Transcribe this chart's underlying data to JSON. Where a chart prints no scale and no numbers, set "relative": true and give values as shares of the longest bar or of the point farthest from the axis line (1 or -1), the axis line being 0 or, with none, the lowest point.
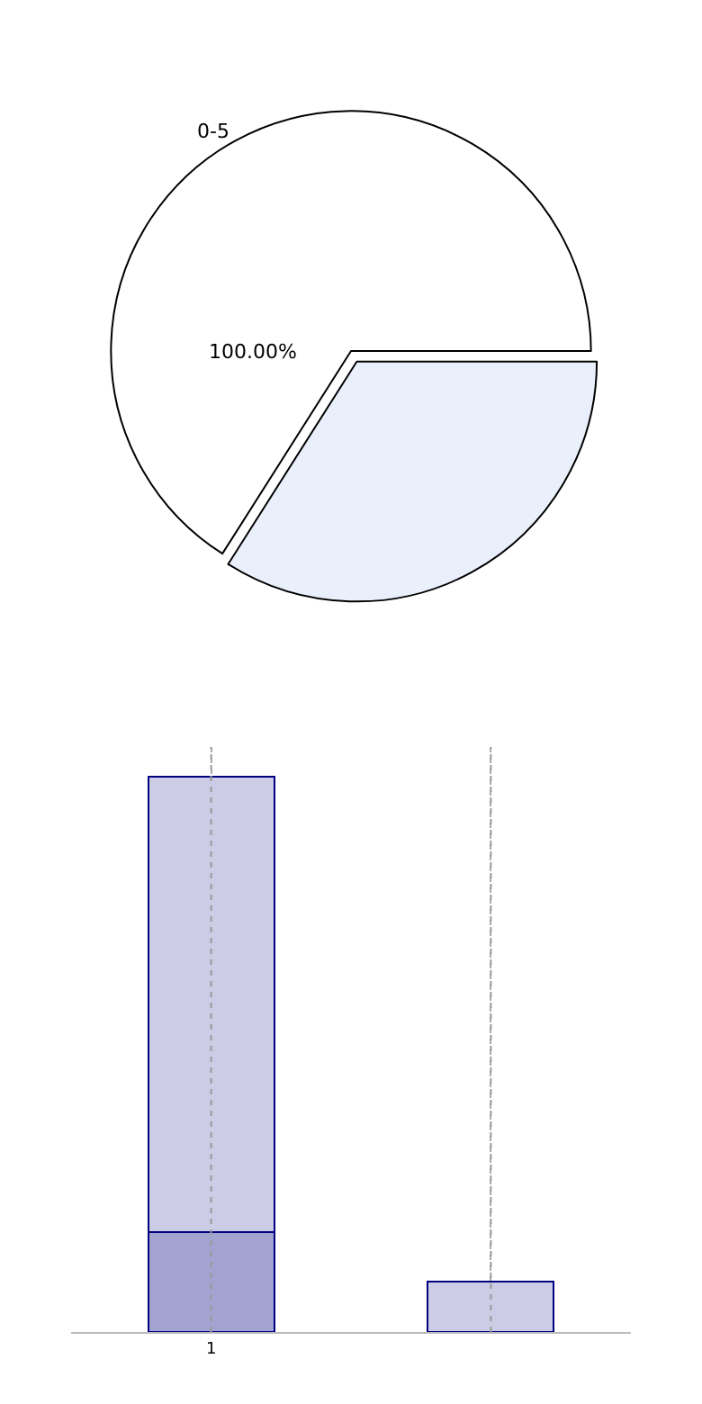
{
  "chart_data": [
    {
      "type": "pie",
      "categories": [
        "0-5",
        null
      ],
      "values": [
        66,
        34
      ],
      "annotations": [
        "100.00%"
      ],
      "colors": [
        "#ffffff",
        "#eaf0fb"
      ],
      "legend": false
    },
    {
      "type": "bar",
      "relative": true,
      "stacked": true,
      "categories": [
        "1",
        null
      ],
      "grid": "x",
      "legend": false,
      "series": [
        {
          "color": "#a3a3d1",
          "values": [
            0.18,
            null
          ]
        },
        {
          "color": "#cccce6",
          "values": [
            0.82,
            0.09
          ]
        }
      ]
    }
  ]
}
